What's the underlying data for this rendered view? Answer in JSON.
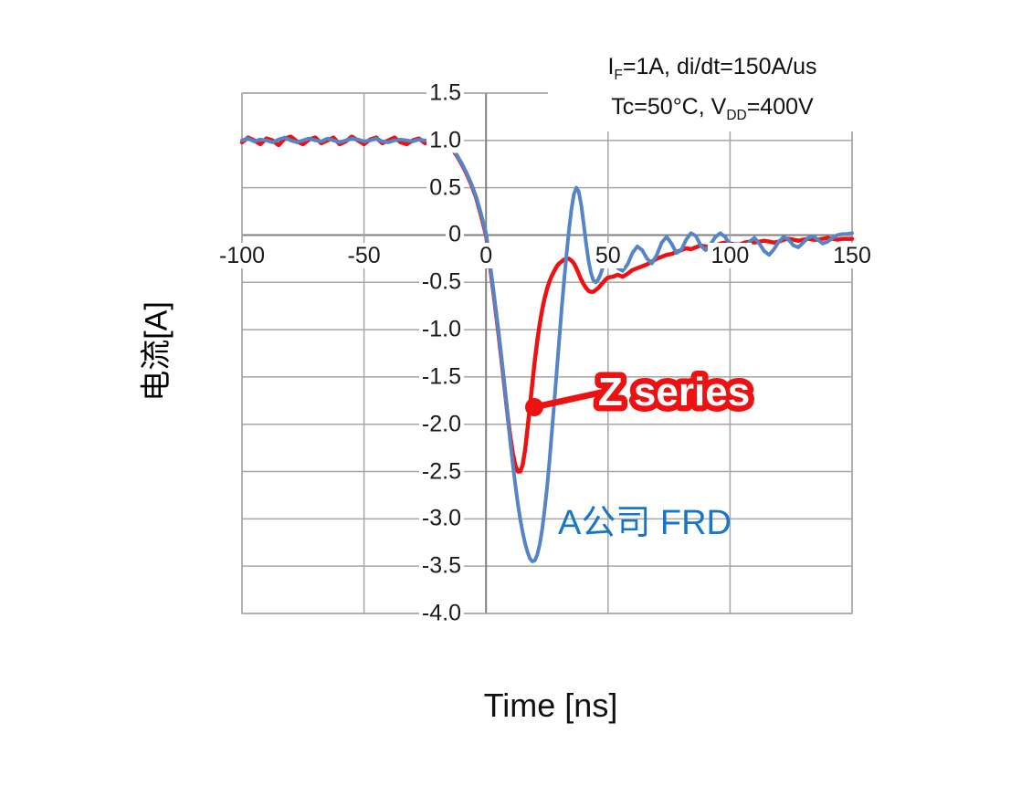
{
  "axes": {
    "x_title": "Time [ns]",
    "y_title": "电流[A]"
  },
  "annotations": {
    "conditions_line1": {
      "pre": "I",
      "sub": "F",
      "post": "=1A, di/dt=150A/us"
    },
    "conditions_line2": {
      "pre": "Tc=50°C, V",
      "sub": "DD",
      "post": "=400V"
    },
    "series_label_red": "Z series",
    "series_label_blue": "A公司 FRD"
  },
  "colors": {
    "red": "#ED1111",
    "blue_curve": "#5585C7",
    "blue_text": "#1876C8",
    "grid": "#A6A6A6",
    "axis": "#808080"
  },
  "chart_data": {
    "type": "line",
    "title": "",
    "xlabel": "Time [ns]",
    "ylabel": "电流[A]",
    "xlim": [
      -100,
      150
    ],
    "ylim": [
      -4.0,
      1.5
    ],
    "grid": true,
    "legend_position": "none",
    "x_ticks": [
      -100,
      -50,
      0,
      50,
      100,
      150
    ],
    "x_tick_labels": [
      "-100",
      "-50",
      "0",
      "50",
      "100",
      "150"
    ],
    "y_ticks": [
      1.5,
      1.0,
      0.5,
      0,
      -0.5,
      -1.0,
      -1.5,
      -2.0,
      -2.5,
      -3.0,
      -3.5,
      -4.0
    ],
    "y_tick_labels": [
      "1.5",
      "1.0",
      "0.5",
      "0",
      "-0.5",
      "-1.0",
      "-1.5",
      "-2.0",
      "-2.5",
      "-3.0",
      "-3.5",
      "-4.0"
    ],
    "x": [
      -100,
      -97.5,
      -95,
      -92.5,
      -90,
      -87.5,
      -85,
      -82.5,
      -80,
      -77.5,
      -75,
      -72.5,
      -70,
      -67.5,
      -65,
      -62.5,
      -60,
      -57.5,
      -55,
      -52.5,
      -50,
      -47.5,
      -45,
      -42.5,
      -40,
      -37.5,
      -35,
      -32.5,
      -30,
      -27.5,
      -25,
      -22.5,
      -20,
      -18,
      -16,
      -14,
      -12,
      -10,
      -8,
      -6,
      -4,
      -2,
      0,
      1,
      2,
      3,
      4,
      5,
      6,
      7,
      8,
      9,
      10,
      11,
      12,
      13,
      14,
      15,
      16,
      17,
      18,
      19,
      20,
      21,
      22,
      23,
      24,
      25,
      26,
      27,
      28,
      29,
      30,
      31,
      32,
      33,
      34,
      35,
      36,
      37,
      38,
      39,
      40,
      41,
      42,
      43,
      44,
      45,
      46,
      47,
      48,
      49,
      50,
      52,
      54,
      56,
      58,
      60,
      62,
      64,
      66,
      68,
      70,
      72,
      74,
      76,
      78,
      80,
      82,
      84,
      86,
      88,
      90,
      92,
      94,
      96,
      98,
      100,
      102,
      104,
      106,
      108,
      110,
      112,
      114,
      116,
      118,
      120,
      122,
      124,
      126,
      128,
      130,
      132,
      134,
      136,
      138,
      140,
      142,
      144,
      146,
      148,
      150
    ],
    "series": [
      {
        "name": "Z series",
        "color": "#ED1111",
        "values": [
          0.98,
          1.03,
          1.0,
          0.96,
          1.02,
          1.0,
          0.95,
          1.02,
          1.04,
          0.99,
          0.96,
          1.01,
          1.03,
          0.97,
          1.0,
          1.03,
          0.96,
          0.99,
          1.04,
          1.0,
          0.96,
          1.01,
          1.03,
          0.97,
          1.0,
          1.03,
          0.98,
          0.96,
          1.0,
          1.02,
          0.97,
          1.0,
          0.99,
          0.98,
          0.96,
          0.91,
          0.84,
          0.75,
          0.65,
          0.53,
          0.39,
          0.2,
          0.0,
          -0.2,
          -0.4,
          -0.6,
          -0.81,
          -1.02,
          -1.24,
          -1.47,
          -1.71,
          -1.94,
          -2.14,
          -2.31,
          -2.43,
          -2.5,
          -2.5,
          -2.43,
          -2.27,
          -2.05,
          -1.81,
          -1.56,
          -1.33,
          -1.12,
          -0.94,
          -0.79,
          -0.67,
          -0.57,
          -0.49,
          -0.43,
          -0.38,
          -0.33,
          -0.3,
          -0.28,
          -0.26,
          -0.25,
          -0.25,
          -0.27,
          -0.3,
          -0.35,
          -0.41,
          -0.47,
          -0.52,
          -0.56,
          -0.59,
          -0.6,
          -0.6,
          -0.58,
          -0.56,
          -0.53,
          -0.5,
          -0.47,
          -0.45,
          -0.44,
          -0.42,
          -0.44,
          -0.41,
          -0.37,
          -0.35,
          -0.33,
          -0.31,
          -0.28,
          -0.25,
          -0.23,
          -0.21,
          -0.2,
          -0.18,
          -0.16,
          -0.14,
          -0.15,
          -0.13,
          -0.11,
          -0.12,
          -0.13,
          -0.11,
          -0.09,
          -0.08,
          -0.09,
          -0.1,
          -0.1,
          -0.08,
          -0.07,
          -0.08,
          -0.07,
          -0.06,
          -0.07,
          -0.08,
          -0.07,
          -0.05,
          -0.04,
          -0.05,
          -0.06,
          -0.05,
          -0.04,
          -0.05,
          -0.05,
          -0.04,
          -0.03,
          -0.04,
          -0.05,
          -0.04,
          -0.04,
          -0.04
        ]
      },
      {
        "name": "A公司 FRD",
        "color": "#5585C7",
        "values": [
          1.0,
          1.02,
          0.99,
          1.01,
          1.0,
          0.98,
          1.01,
          1.03,
          1.0,
          0.98,
          1.0,
          1.02,
          1.0,
          0.99,
          1.02,
          1.0,
          0.98,
          1.0,
          1.02,
          1.01,
          0.99,
          1.0,
          1.02,
          0.99,
          0.98,
          1.0,
          1.01,
          1.0,
          0.99,
          1.01,
          1.0,
          0.99,
          1.0,
          0.99,
          0.97,
          0.92,
          0.85,
          0.76,
          0.66,
          0.54,
          0.4,
          0.22,
          0.02,
          -0.18,
          -0.38,
          -0.58,
          -0.79,
          -1.0,
          -1.22,
          -1.45,
          -1.7,
          -1.95,
          -2.2,
          -2.43,
          -2.64,
          -2.83,
          -3.0,
          -3.14,
          -3.26,
          -3.35,
          -3.42,
          -3.45,
          -3.44,
          -3.38,
          -3.27,
          -3.11,
          -2.91,
          -2.67,
          -2.39,
          -2.08,
          -1.76,
          -1.43,
          -1.1,
          -0.78,
          -0.48,
          -0.2,
          0.05,
          0.27,
          0.43,
          0.5,
          0.46,
          0.32,
          0.12,
          -0.09,
          -0.27,
          -0.4,
          -0.48,
          -0.5,
          -0.47,
          -0.41,
          -0.33,
          -0.26,
          -0.22,
          -0.27,
          -0.35,
          -0.38,
          -0.31,
          -0.19,
          -0.12,
          -0.16,
          -0.25,
          -0.3,
          -0.21,
          -0.08,
          -0.02,
          -0.09,
          -0.19,
          -0.16,
          -0.05,
          0.02,
          -0.01,
          -0.11,
          -0.16,
          -0.1,
          -0.02,
          0.02,
          -0.02,
          -0.1,
          -0.17,
          -0.21,
          -0.15,
          -0.07,
          -0.03,
          -0.09,
          -0.17,
          -0.21,
          -0.15,
          -0.07,
          -0.02,
          -0.05,
          -0.11,
          -0.13,
          -0.08,
          -0.03,
          -0.01,
          -0.05,
          -0.09,
          -0.07,
          -0.03,
          0.0,
          0.01,
          0.01,
          0.02
        ]
      }
    ]
  }
}
